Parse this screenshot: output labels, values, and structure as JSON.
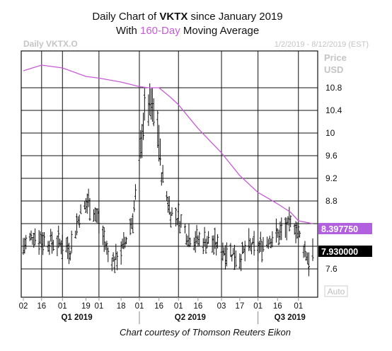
{
  "header": {
    "line1_prefix": "Daily Chart of ",
    "line1_ticker": "VKTX",
    "line1_suffix": " since January 2019",
    "line2_prefix": "With ",
    "line2_highlight": "160-Day",
    "line2_suffix": " Moving Average"
  },
  "colors": {
    "ma_line": "#c85bd8",
    "ma_tag_bg": "#b25fe0",
    "price_tag_bg": "#000000",
    "bars": "#111111",
    "grid": "#111111",
    "faint_text": "#bbbbbb"
  },
  "footer": {
    "credit": "Chart courtesy of Thomson Reuters Eikon"
  },
  "chart_data": {
    "type": "ohlc",
    "instrument": "Daily VKTX.O",
    "date_range": "1/2/2019 - 8/12/2019 (EST)",
    "y_axis_title": [
      "Price",
      "USD"
    ],
    "y_ticks": [
      7.6,
      8.0,
      8.4,
      8.8,
      9.2,
      9.6,
      10,
      10.4,
      10.8
    ],
    "y_tick_labels": [
      "7.6",
      "",
      "",
      "8.8",
      "9.2",
      "9.6",
      "10",
      "10.4",
      "10.8"
    ],
    "ylim": [
      7.1,
      11.45
    ],
    "x_tick_labels": [
      "02",
      "16",
      "01",
      "19",
      "01",
      "18",
      "01",
      "16",
      "01",
      "16",
      "03",
      "17",
      "01",
      "16",
      "01"
    ],
    "x_group_labels": [
      "Q1 2019",
      "Q2 2019",
      "Q3 2019"
    ],
    "grid": true,
    "auto_button": "Auto",
    "last_price_tag": "7.930000",
    "moving_average": {
      "name": "160-Day Moving Average",
      "tag": "8.397750",
      "points": [
        [
          "2019-01-02",
          11.1
        ],
        [
          "2019-01-16",
          11.2
        ],
        [
          "2019-02-01",
          11.15
        ],
        [
          "2019-02-19",
          11.0
        ],
        [
          "2019-03-01",
          10.97
        ],
        [
          "2019-03-18",
          10.9
        ],
        [
          "2019-04-01",
          10.82
        ],
        [
          "2019-04-08",
          10.8
        ],
        [
          "2019-04-16",
          10.8
        ],
        [
          "2019-04-25",
          10.63
        ],
        [
          "2019-05-01",
          10.5
        ],
        [
          "2019-05-16",
          10.08
        ],
        [
          "2019-06-03",
          9.65
        ],
        [
          "2019-06-17",
          9.25
        ],
        [
          "2019-07-01",
          8.95
        ],
        [
          "2019-07-16",
          8.75
        ],
        [
          "2019-07-26",
          8.6
        ],
        [
          "2019-08-01",
          8.45
        ],
        [
          "2019-08-12",
          8.4
        ]
      ]
    },
    "price_waypoints": [
      [
        "2019-01-02",
        8.0
      ],
      [
        "2019-01-10",
        8.2
      ],
      [
        "2019-01-18",
        8.1
      ],
      [
        "2019-02-01",
        8.05
      ],
      [
        "2019-02-07",
        7.95
      ],
      [
        "2019-02-14",
        8.55
      ],
      [
        "2019-02-21",
        8.8
      ],
      [
        "2019-03-01",
        8.45
      ],
      [
        "2019-03-08",
        7.85
      ],
      [
        "2019-03-13",
        7.75
      ],
      [
        "2019-03-20",
        8.0
      ],
      [
        "2019-03-27",
        8.5
      ],
      [
        "2019-04-01",
        9.5
      ],
      [
        "2019-04-05",
        10.4
      ],
      [
        "2019-04-10",
        10.5
      ],
      [
        "2019-04-15",
        10.1
      ],
      [
        "2019-04-18",
        9.3
      ],
      [
        "2019-04-25",
        8.6
      ],
      [
        "2019-05-01",
        8.5
      ],
      [
        "2019-05-08",
        8.2
      ],
      [
        "2019-05-16",
        8.1
      ],
      [
        "2019-05-24",
        8.1
      ],
      [
        "2019-06-03",
        7.95
      ],
      [
        "2019-06-10",
        7.9
      ],
      [
        "2019-06-17",
        7.8
      ],
      [
        "2019-06-24",
        8.0
      ],
      [
        "2019-07-01",
        7.95
      ],
      [
        "2019-07-10",
        8.15
      ],
      [
        "2019-07-16",
        8.2
      ],
      [
        "2019-07-24",
        8.35
      ],
      [
        "2019-07-29",
        8.4
      ],
      [
        "2019-08-05",
        8.0
      ],
      [
        "2019-08-09",
        7.75
      ],
      [
        "2019-08-12",
        7.9
      ]
    ]
  }
}
